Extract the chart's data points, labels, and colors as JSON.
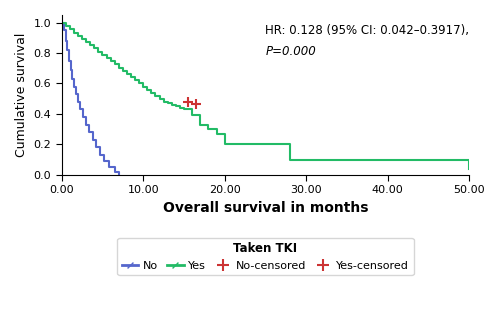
{
  "xlabel": "Overall survival in months",
  "ylabel": "Cumulative survival",
  "annotation_line1": "HR: 0.128 (95% CI: 0.042–0.3917),",
  "annotation_line2": "P=0.000",
  "xlim": [
    0,
    50
  ],
  "ylim": [
    0,
    1.05
  ],
  "xticks": [
    0.0,
    10.0,
    20.0,
    30.0,
    40.0,
    50.0
  ],
  "yticks": [
    0.0,
    0.2,
    0.4,
    0.6,
    0.8,
    1.0
  ],
  "no_color": "#5566cc",
  "yes_color": "#22bb66",
  "censored_color": "#cc3333",
  "no_times": [
    0,
    0.3,
    0.5,
    0.7,
    0.9,
    1.1,
    1.3,
    1.5,
    1.7,
    2.0,
    2.3,
    2.6,
    3.0,
    3.4,
    3.8,
    4.2,
    4.7,
    5.2,
    5.8,
    6.5,
    7.0
  ],
  "no_surv": [
    1.0,
    0.95,
    0.88,
    0.82,
    0.75,
    0.69,
    0.63,
    0.58,
    0.53,
    0.48,
    0.43,
    0.38,
    0.33,
    0.28,
    0.23,
    0.18,
    0.13,
    0.09,
    0.05,
    0.02,
    0.0
  ],
  "yes_times": [
    0,
    0.5,
    1.0,
    1.5,
    2.0,
    2.5,
    3.0,
    3.5,
    4.0,
    4.5,
    5.0,
    5.5,
    6.0,
    6.5,
    7.0,
    7.5,
    8.0,
    8.5,
    9.0,
    9.5,
    10.0,
    10.5,
    11.0,
    11.5,
    12.0,
    12.5,
    13.0,
    13.5,
    14.0,
    14.5,
    15.0,
    16.0,
    17.0,
    18.0,
    19.0,
    20.0,
    21.0,
    22.0,
    23.0,
    24.0,
    25.0,
    26.0,
    27.0,
    28.0,
    29.5,
    49.5,
    50.0
  ],
  "yes_surv": [
    1.0,
    0.98,
    0.96,
    0.93,
    0.91,
    0.89,
    0.87,
    0.85,
    0.83,
    0.81,
    0.79,
    0.77,
    0.75,
    0.73,
    0.7,
    0.68,
    0.66,
    0.64,
    0.62,
    0.6,
    0.58,
    0.56,
    0.54,
    0.52,
    0.5,
    0.48,
    0.47,
    0.46,
    0.45,
    0.44,
    0.43,
    0.39,
    0.33,
    0.3,
    0.27,
    0.2,
    0.2,
    0.2,
    0.2,
    0.2,
    0.2,
    0.2,
    0.2,
    0.1,
    0.1,
    0.1,
    0.04
  ],
  "censored_yes_times": [
    15.5,
    16.5
  ],
  "censored_yes_surv": [
    0.475,
    0.465
  ],
  "legend_title": "Taken TKI",
  "bg_color": "#ffffff"
}
